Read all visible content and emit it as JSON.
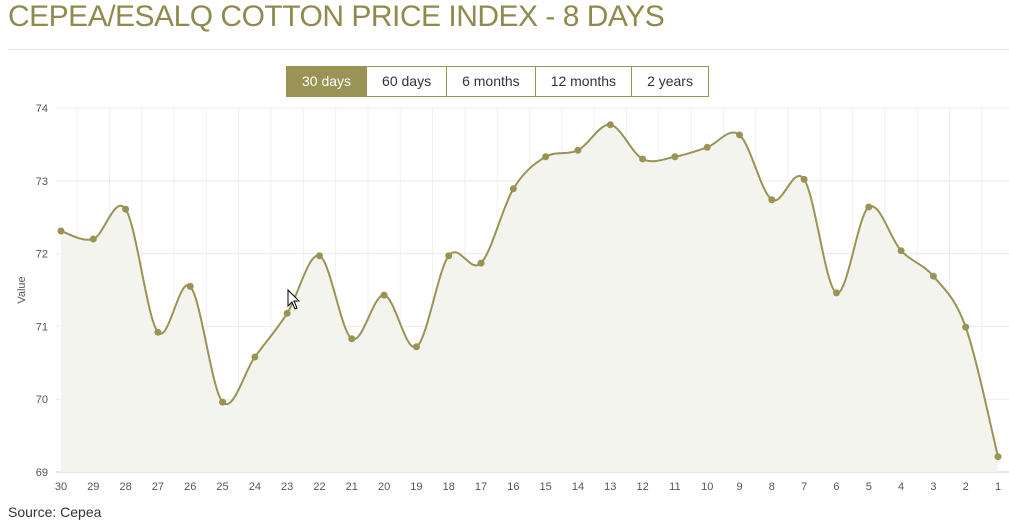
{
  "title": "CEPEA/ESALQ COTTON PRICE INDEX - 8 DAYS",
  "range_buttons": [
    {
      "label": "30 days",
      "active": true
    },
    {
      "label": "60 days"
    },
    {
      "label": "6 months"
    },
    {
      "label": "12 months"
    },
    {
      "label": "2 years"
    }
  ],
  "source": "Source: Cepea",
  "colors": {
    "accent": "#999455",
    "fill": "#f4f4ef"
  },
  "chart_data": {
    "type": "area",
    "title": "",
    "xlabel": "",
    "ylabel": "Value",
    "ylim": [
      69,
      74
    ],
    "yticks": [
      69,
      70,
      71,
      72,
      73,
      74
    ],
    "grid": true,
    "categories": [
      "30",
      "29",
      "28",
      "27",
      "26",
      "25",
      "24",
      "23",
      "22",
      "21",
      "20",
      "19",
      "18",
      "17",
      "16",
      "15",
      "14",
      "13",
      "12",
      "11",
      "10",
      "9",
      "8",
      "7",
      "6",
      "5",
      "4",
      "3",
      "2",
      "1"
    ],
    "series": [
      {
        "name": "Value",
        "values": [
          72.31,
          72.2,
          72.61,
          70.92,
          71.55,
          69.96,
          70.58,
          71.18,
          71.97,
          70.83,
          71.43,
          70.72,
          71.97,
          71.87,
          72.89,
          73.33,
          73.42,
          73.77,
          73.3,
          73.33,
          73.46,
          73.63,
          72.74,
          73.02,
          71.46,
          72.64,
          72.04,
          71.69,
          70.99,
          69.21
        ]
      }
    ]
  }
}
